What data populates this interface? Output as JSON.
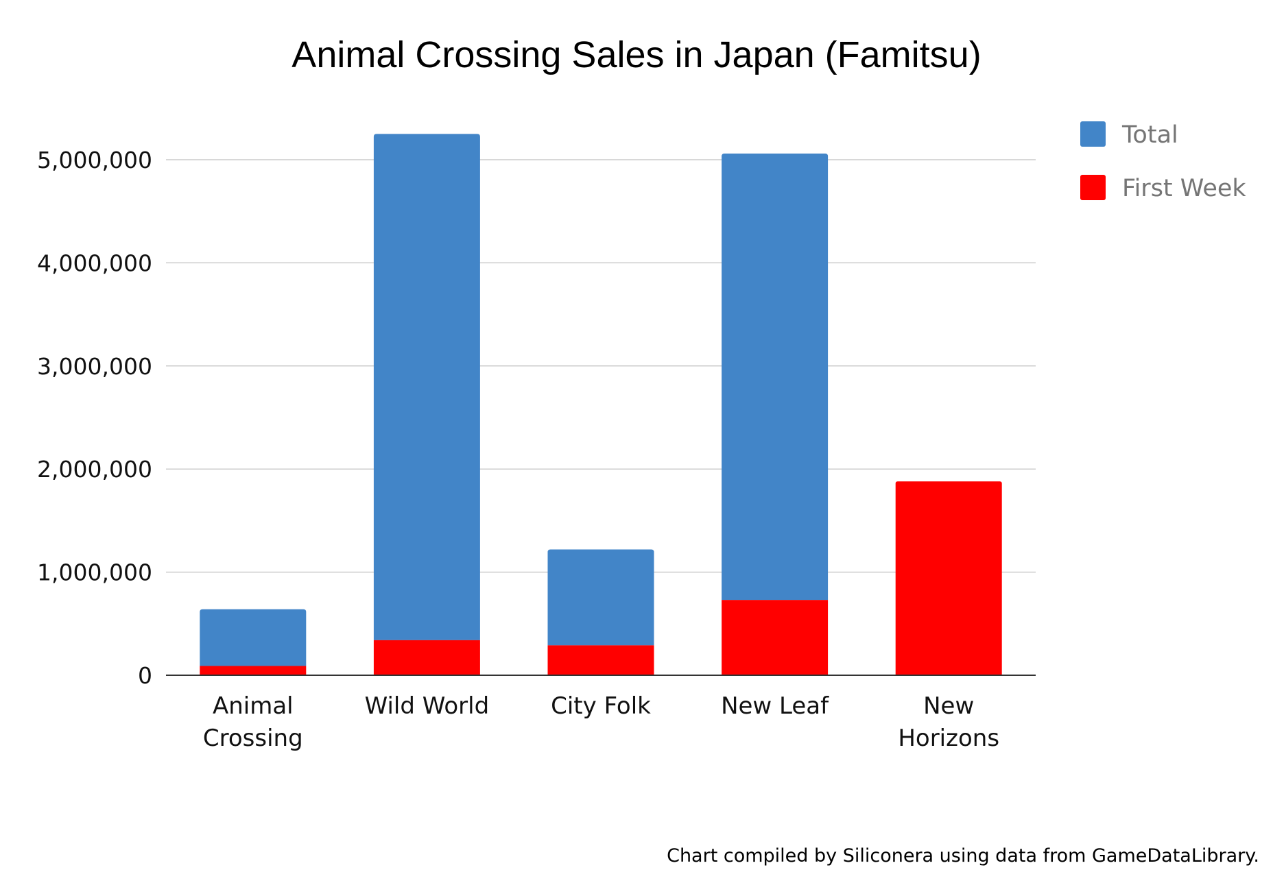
{
  "chart_data": {
    "type": "bar",
    "stacked": true,
    "title": "Animal Crossing Sales in Japan (Famitsu)",
    "xlabel": "",
    "ylabel": "",
    "categories": [
      [
        "Animal",
        "Crossing"
      ],
      [
        "Wild World"
      ],
      [
        "City Folk"
      ],
      [
        "New Leaf"
      ],
      [
        "New",
        "Horizons"
      ]
    ],
    "series": [
      {
        "name": "First Week",
        "color": "#ff0000",
        "values": [
          90000,
          340000,
          290000,
          730000,
          1880000
        ]
      },
      {
        "name": "Total",
        "color": "#4285c8",
        "values": [
          640000,
          5250000,
          1220000,
          5060000,
          null
        ]
      }
    ],
    "legend_order": [
      "Total",
      "First Week"
    ],
    "ylim": [
      0,
      5000000
    ],
    "yticks": [
      0,
      1000000,
      2000000,
      3000000,
      4000000,
      5000000
    ],
    "ytick_labels": [
      "0",
      "1,000,000",
      "2,000,000",
      "3,000,000",
      "4,000,000",
      "5,000,000"
    ],
    "grid": true,
    "legend_position": "right",
    "credit": "Chart compiled by Siliconera using data from GameDataLibrary."
  }
}
